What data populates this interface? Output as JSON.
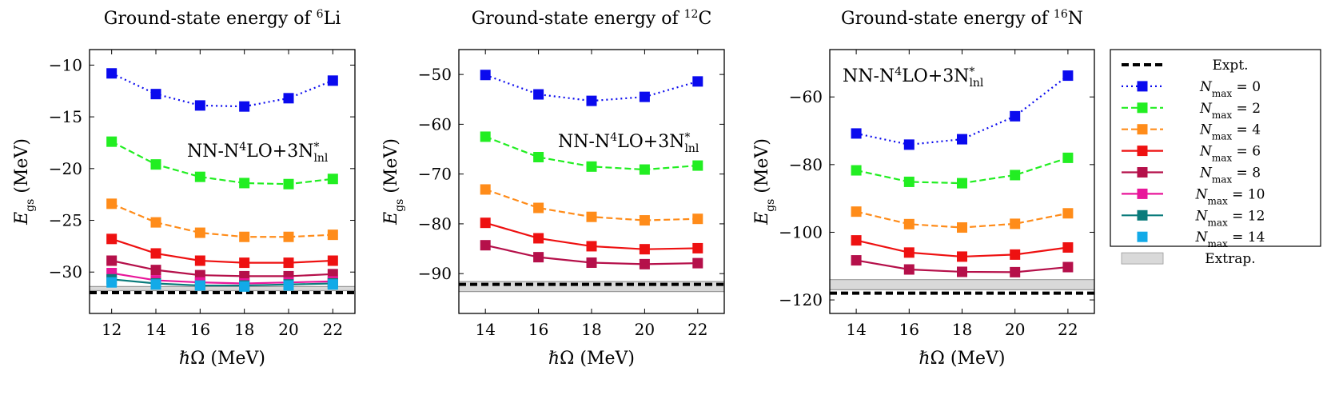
{
  "chart_data": [
    {
      "type": "line",
      "title": {
        "prefix": "Ground-state energy of ",
        "sup": "6",
        "nucleus": "Li"
      },
      "xlabel": "ℏΩ (MeV)",
      "ylabel": {
        "main": "E",
        "sub": "gs",
        "unit": " (MeV)"
      },
      "xlim": [
        11,
        23
      ],
      "ylim": [
        -34,
        -8.5
      ],
      "xticks": [
        12,
        14,
        16,
        18,
        20,
        22
      ],
      "yticks": [
        -10,
        -15,
        -20,
        -25,
        -30
      ],
      "annotation": {
        "base": "NN-N",
        "sup": "4",
        "mid": "LO+3N",
        "sub": "lnl",
        "star": "*"
      },
      "expt": -31.99,
      "extrap": {
        "low": -31.8,
        "high": -31.4
      },
      "x": [
        12,
        14,
        16,
        18,
        20,
        22
      ],
      "series": [
        {
          "name": "Nmax = 0",
          "values": [
            -10.8,
            -12.8,
            -13.9,
            -14.0,
            -13.2,
            -11.5
          ]
        },
        {
          "name": "Nmax = 2",
          "values": [
            -17.4,
            -19.6,
            -20.8,
            -21.4,
            -21.5,
            -21.0
          ]
        },
        {
          "name": "Nmax = 4",
          "values": [
            -23.4,
            -25.2,
            -26.2,
            -26.6,
            -26.6,
            -26.4
          ]
        },
        {
          "name": "Nmax = 6",
          "values": [
            -26.8,
            -28.2,
            -28.9,
            -29.1,
            -29.1,
            -28.9
          ]
        },
        {
          "name": "Nmax = 8",
          "values": [
            -28.9,
            -29.8,
            -30.3,
            -30.4,
            -30.4,
            -30.2
          ]
        },
        {
          "name": "Nmax = 10",
          "values": [
            -30.1,
            -30.8,
            -31.0,
            -31.1,
            -31.0,
            -30.9
          ]
        },
        {
          "name": "Nmax = 12",
          "values": [
            -30.7,
            -31.1,
            -31.3,
            -31.3,
            -31.2,
            -31.1
          ]
        },
        {
          "name": "Nmax = 14",
          "values": [
            -31.0,
            -31.2,
            -31.3,
            -31.4,
            -31.3,
            -31.2
          ]
        }
      ]
    },
    {
      "type": "line",
      "title": {
        "prefix": "Ground-state energy of ",
        "sup": "12",
        "nucleus": "C"
      },
      "xlabel": "ℏΩ (MeV)",
      "ylabel": {
        "main": "E",
        "sub": "gs",
        "unit": " (MeV)"
      },
      "xlim": [
        13,
        23
      ],
      "ylim": [
        -98,
        -45
      ],
      "xticks": [
        14,
        16,
        18,
        20,
        22
      ],
      "yticks": [
        -50,
        -60,
        -70,
        -80,
        -90
      ],
      "annotation": {
        "base": "NN-N",
        "sup": "4",
        "mid": "LO+3N",
        "sub": "lnl",
        "star": "*"
      },
      "expt": -92.16,
      "extrap": {
        "low": -93.6,
        "high": -91.6
      },
      "x": [
        14,
        16,
        18,
        20,
        22
      ],
      "series": [
        {
          "name": "Nmax = 0",
          "values": [
            -50.1,
            -54.0,
            -55.3,
            -54.5,
            -51.4
          ]
        },
        {
          "name": "Nmax = 2",
          "values": [
            -62.5,
            -66.6,
            -68.5,
            -69.1,
            -68.3
          ]
        },
        {
          "name": "Nmax = 4",
          "values": [
            -73.1,
            -76.8,
            -78.6,
            -79.3,
            -79.0
          ]
        },
        {
          "name": "Nmax = 6",
          "values": [
            -79.8,
            -82.9,
            -84.5,
            -85.1,
            -84.9
          ]
        },
        {
          "name": "Nmax = 8",
          "values": [
            -84.3,
            -86.7,
            -87.8,
            -88.1,
            -87.9
          ]
        }
      ]
    },
    {
      "type": "line",
      "title": {
        "prefix": "Ground-state energy of ",
        "sup": "16",
        "nucleus": "N"
      },
      "xlabel": "ℏΩ (MeV)",
      "ylabel": {
        "main": "E",
        "sub": "gs",
        "unit": " (MeV)"
      },
      "xlim": [
        13,
        23
      ],
      "ylim": [
        -124,
        -46
      ],
      "xticks": [
        14,
        16,
        18,
        20,
        22
      ],
      "yticks": [
        -60,
        -80,
        -100,
        -120
      ],
      "annotation": {
        "base": "NN-N",
        "sup": "4",
        "mid": "LO+3N",
        "sub": "lnl",
        "star": "*"
      },
      "expt": -118.0,
      "extrap": {
        "low": -117,
        "high": -114
      },
      "x": [
        14,
        16,
        18,
        20,
        22
      ],
      "series": [
        {
          "name": "Nmax = 0",
          "values": [
            -70.8,
            -74.1,
            -72.5,
            -65.7,
            -53.7
          ]
        },
        {
          "name": "Nmax = 2",
          "values": [
            -81.7,
            -85.1,
            -85.5,
            -83.1,
            -78.0
          ]
        },
        {
          "name": "Nmax = 4",
          "values": [
            -93.9,
            -97.6,
            -98.6,
            -97.5,
            -94.4
          ]
        },
        {
          "name": "Nmax = 6",
          "values": [
            -102.4,
            -106.0,
            -107.2,
            -106.6,
            -104.5
          ]
        },
        {
          "name": "Nmax = 8",
          "values": [
            -108.3,
            -111.0,
            -111.7,
            -111.8,
            -110.3
          ]
        }
      ]
    }
  ],
  "legend": {
    "expt": "Expt.",
    "extrap": "Extrap.",
    "items": [
      {
        "main": "N",
        "sub": "max",
        "value": " = 0"
      },
      {
        "main": "N",
        "sub": "max",
        "value": " = 2"
      },
      {
        "main": "N",
        "sub": "max",
        "value": " = 4"
      },
      {
        "main": "N",
        "sub": "max",
        "value": " = 6"
      },
      {
        "main": "N",
        "sub": "max",
        "value": " = 8"
      },
      {
        "main": "N",
        "sub": "max",
        "value": " = 10"
      },
      {
        "main": "N",
        "sub": "max",
        "value": " = 12"
      },
      {
        "main": "N",
        "sub": "max",
        "value": " = 14"
      }
    ]
  },
  "styles": {
    "series": [
      {
        "color": "#0a0aee",
        "dash": "dotted"
      },
      {
        "color": "#22ee22",
        "dash": "dashed"
      },
      {
        "color": "#ff8c1a",
        "dash": "dashed"
      },
      {
        "color": "#ee1111",
        "dash": "solid"
      },
      {
        "color": "#b5104a",
        "dash": "solid"
      },
      {
        "color": "#e8169a",
        "dash": "solid"
      },
      {
        "color": "#0a7b7b",
        "dash": "solid"
      },
      {
        "color": "#12aae8",
        "dash": "none"
      }
    ],
    "extrap_fill": "#d9d9d9",
    "extrap_stroke": "#9a9a9a",
    "expt_color": "#000000"
  }
}
